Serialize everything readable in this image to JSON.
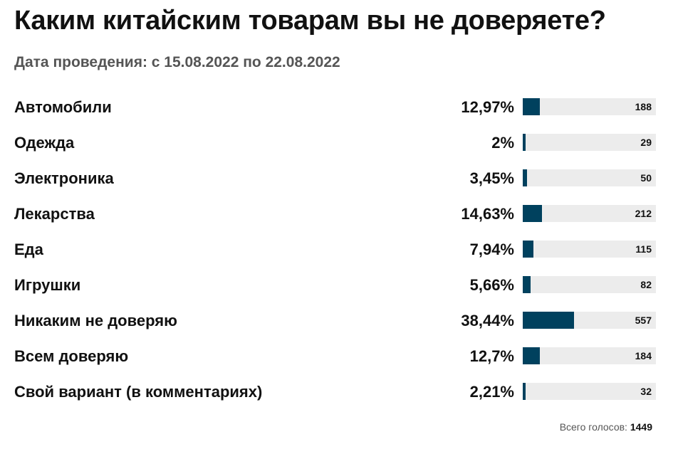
{
  "page": {
    "title": "Каким китайским товарам вы не доверяете?",
    "subtitle": "Дата проведения: с 15.08.2022 по 22.08.2022",
    "total_label": "Всего голосов:",
    "total_value": "1449"
  },
  "colors": {
    "bar": "#00415e",
    "track": "#ececec"
  },
  "chart_data": {
    "type": "bar",
    "orientation": "horizontal",
    "categories": [
      "Автомобили",
      "Одежда",
      "Электроника",
      "Лекарства",
      "Еда",
      "Игрушки",
      "Никаким не доверяю",
      "Всем доверяю",
      "Свой вариант (в комментариях)"
    ],
    "percent_labels": [
      "12,97%",
      "2%",
      "3,45%",
      "14,63%",
      "7,94%",
      "5,66%",
      "38,44%",
      "12,7%",
      "2,21%"
    ],
    "percent_values": [
      12.97,
      2,
      3.45,
      14.63,
      7.94,
      5.66,
      38.44,
      12.7,
      2.21
    ],
    "values": [
      188,
      29,
      50,
      212,
      115,
      82,
      557,
      184,
      32
    ],
    "title": "Каким китайским товарам вы не доверяете?",
    "total": 1449
  }
}
